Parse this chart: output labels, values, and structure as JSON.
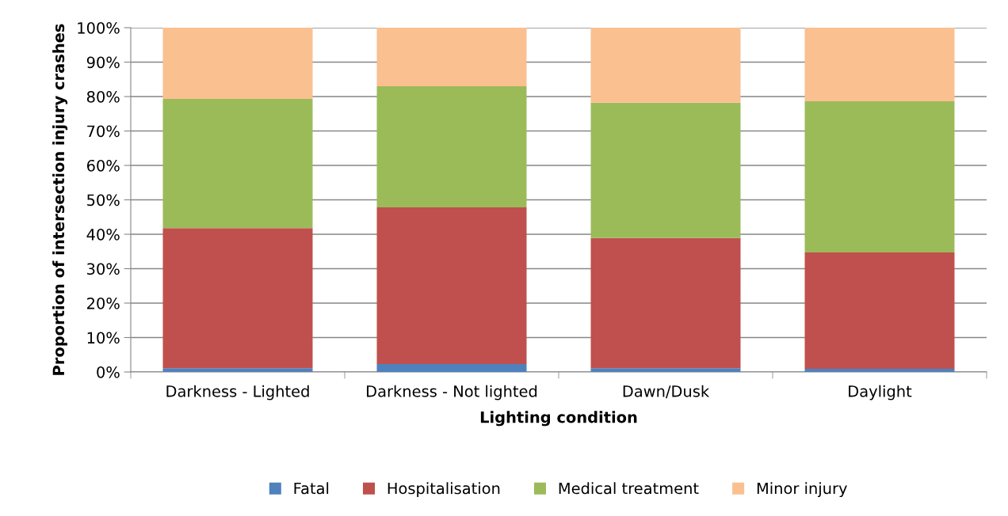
{
  "chart_data": {
    "type": "bar",
    "stacked": true,
    "xlabel": "Lighting condition",
    "ylabel": "Proportion of intersection injury crashes",
    "categories": [
      "Darkness - Lighted",
      "Darkness - Not lighted",
      "Dawn/Dusk",
      "Daylight"
    ],
    "series": [
      {
        "name": "Fatal",
        "color": "#4f81bd",
        "values": [
          1.1,
          2.3,
          1.1,
          0.9
        ]
      },
      {
        "name": "Hospitalisation",
        "color": "#c0504d",
        "values": [
          40.7,
          45.5,
          37.8,
          33.8
        ]
      },
      {
        "name": "Medical treatment",
        "color": "#9bbb59",
        "values": [
          37.5,
          35.2,
          39.3,
          43.9
        ]
      },
      {
        "name": "Minor injury",
        "color": "#fac090",
        "values": [
          20.7,
          17.0,
          21.8,
          21.4
        ]
      }
    ],
    "ylim": [
      0,
      100
    ],
    "yticks": [
      {
        "value": 0,
        "label": "0%"
      },
      {
        "value": 10,
        "label": "10%"
      },
      {
        "value": 20,
        "label": "20%"
      },
      {
        "value": 30,
        "label": "30%"
      },
      {
        "value": 40,
        "label": "40%"
      },
      {
        "value": 50,
        "label": "50%"
      },
      {
        "value": 60,
        "label": "60%"
      },
      {
        "value": 70,
        "label": "70%"
      },
      {
        "value": 80,
        "label": "80%"
      },
      {
        "value": 90,
        "label": "90%"
      },
      {
        "value": 100,
        "label": "100%"
      }
    ],
    "grid": "y",
    "legend": "bottom"
  }
}
